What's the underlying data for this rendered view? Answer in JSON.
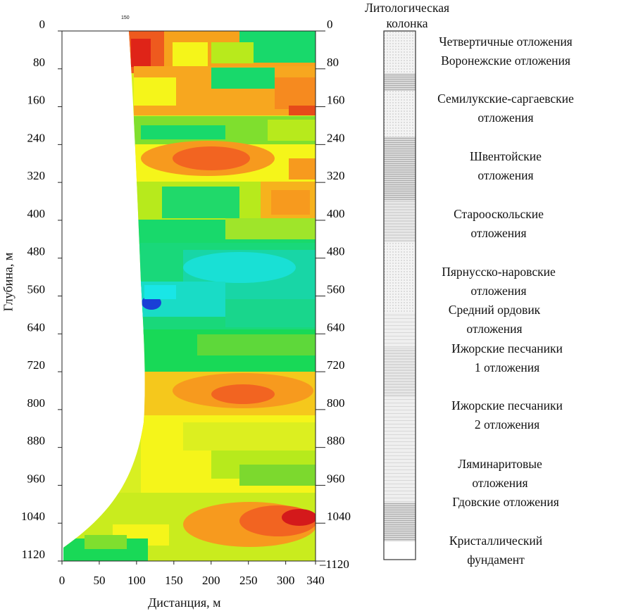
{
  "chart_data": {
    "type": "heatmap",
    "title": "",
    "xlabel": "Дистанция, м",
    "ylabel": "Глубина, м",
    "xlim": [
      0,
      340
    ],
    "ylim": [
      1120,
      0
    ],
    "x_ticks": [
      "0",
      "50",
      "100",
      "150",
      "200",
      "250",
      "300",
      "340"
    ],
    "y_ticks": [
      "0",
      "80",
      "160",
      "240",
      "320",
      "400",
      "480",
      "560",
      "640",
      "720",
      "800",
      "880",
      "960",
      "1040",
      "1120"
    ],
    "top_marker": "150",
    "colors": {
      "blue": "#1a3fd6",
      "cyan": "#18e6e6",
      "green": "#17d957",
      "yellow_green": "#b7ea1c",
      "yellow": "#f5f51a",
      "orange": "#f79a1e",
      "orange_red": "#f26421",
      "red": "#e01b17"
    },
    "litho_column": {
      "title_line1": "Литологическая",
      "title_line2": "колонка",
      "units": [
        {
          "name": "Четвертичные отложения"
        },
        {
          "name": "Воронежские отложения"
        },
        {
          "name": "Семилукские-саргаевские отложения"
        },
        {
          "name": "Швентойские отложения"
        },
        {
          "name": "Старооскольские отложения"
        },
        {
          "name": "Пярнусско-наровские отложения"
        },
        {
          "name": "Средний ордовик отложения"
        },
        {
          "name": "Ижорские песчаники 1 отложения"
        },
        {
          "name": "Ижорские песчаники 2 отложения"
        },
        {
          "name": "Ляминаритовые отложения"
        },
        {
          "name": "Гдовские отложения"
        },
        {
          "name": "Кристаллический фундамент"
        }
      ]
    }
  },
  "labels": {
    "strat_1": "Четвертичные отложения",
    "strat_2": "Воронежские отложения",
    "strat_3a": "Семилукские-саргаевские",
    "strat_3b": "отложения",
    "strat_4a": "Швентойские",
    "strat_4b": "отложения",
    "strat_5a": "Старооскольские",
    "strat_5b": "отложения",
    "strat_6a": "Пярнусско-наровские",
    "strat_6b": "отложения",
    "strat_7a": "Средний ордовик",
    "strat_7b": "отложения",
    "strat_8a": "Ижорские песчаники",
    "strat_8b": "1 отложения",
    "strat_9a": "Ижорские песчаники",
    "strat_9b": "2 отложения",
    "strat_10a": "Ляминаритовые",
    "strat_10b": "отложения",
    "strat_11": "Гдовские отложения",
    "strat_12a": "Кристаллический",
    "strat_12b": "фундамент"
  }
}
